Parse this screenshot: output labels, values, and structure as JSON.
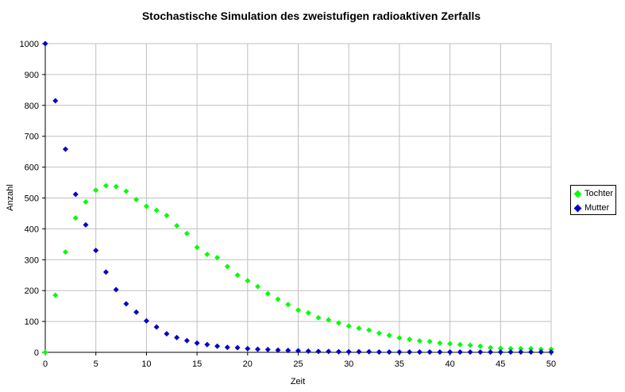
{
  "chart_data": {
    "type": "scatter",
    "title": "Stochastische Simulation des zweistufigen radioaktiven Zerfalls",
    "xlabel": "Zeit",
    "ylabel": "Anzahl",
    "xlim": [
      0,
      50
    ],
    "ylim": [
      0,
      1000
    ],
    "xticks": [
      "0",
      "5",
      "10",
      "15",
      "20",
      "25",
      "30",
      "35",
      "40",
      "45",
      "50"
    ],
    "yticks": [
      "0",
      "100",
      "200",
      "300",
      "400",
      "500",
      "600",
      "700",
      "800",
      "900",
      "1000"
    ],
    "grid": true,
    "legend_position": "right",
    "x": [
      0,
      1,
      2,
      3,
      4,
      5,
      6,
      7,
      8,
      9,
      10,
      11,
      12,
      13,
      14,
      15,
      16,
      17,
      18,
      19,
      20,
      21,
      22,
      23,
      24,
      25,
      26,
      27,
      28,
      29,
      30,
      31,
      32,
      33,
      34,
      35,
      36,
      37,
      38,
      39,
      40,
      41,
      42,
      43,
      44,
      45,
      46,
      47,
      48,
      49,
      50
    ],
    "series": [
      {
        "name": "Tochter",
        "color": "#00ff00",
        "values": [
          0,
          185,
          325,
          435,
          487,
          525,
          540,
          537,
          522,
          495,
          473,
          460,
          443,
          410,
          385,
          340,
          317,
          307,
          278,
          250,
          232,
          213,
          190,
          172,
          155,
          137,
          128,
          112,
          105,
          95,
          85,
          78,
          72,
          62,
          55,
          47,
          42,
          37,
          35,
          30,
          28,
          25,
          23,
          20,
          15,
          13,
          12,
          12,
          12,
          10,
          10
        ]
      },
      {
        "name": "Mutter",
        "color": "#0000cc",
        "values": [
          1000,
          815,
          658,
          512,
          413,
          330,
          260,
          203,
          157,
          130,
          102,
          82,
          60,
          48,
          38,
          30,
          25,
          20,
          16,
          15,
          12,
          10,
          9,
          7,
          6,
          5,
          4,
          3,
          3,
          2,
          2,
          2,
          2,
          1,
          1,
          1,
          1,
          1,
          1,
          1,
          1,
          1,
          1,
          1,
          1,
          1,
          1,
          1,
          1,
          1,
          1
        ]
      }
    ]
  }
}
